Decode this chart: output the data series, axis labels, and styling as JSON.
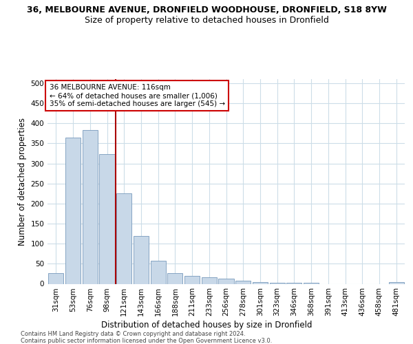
{
  "title_line1": "36, MELBOURNE AVENUE, DRONFIELD WOODHOUSE, DRONFIELD, S18 8YW",
  "title_line2": "Size of property relative to detached houses in Dronfield",
  "xlabel": "Distribution of detached houses by size in Dronfield",
  "ylabel": "Number of detached properties",
  "footer_line1": "Contains HM Land Registry data © Crown copyright and database right 2024.",
  "footer_line2": "Contains public sector information licensed under the Open Government Licence v3.0.",
  "categories": [
    "31sqm",
    "53sqm",
    "76sqm",
    "98sqm",
    "121sqm",
    "143sqm",
    "166sqm",
    "188sqm",
    "211sqm",
    "233sqm",
    "256sqm",
    "278sqm",
    "301sqm",
    "323sqm",
    "346sqm",
    "368sqm",
    "391sqm",
    "413sqm",
    "436sqm",
    "458sqm",
    "481sqm"
  ],
  "values": [
    26,
    365,
    383,
    323,
    225,
    120,
    58,
    27,
    20,
    16,
    13,
    7,
    5,
    2,
    2,
    2,
    0,
    0,
    0,
    0,
    5
  ],
  "bar_color": "#c8d8e8",
  "bar_edge_color": "#7799bb",
  "vline_x_index": 4,
  "vline_color": "#aa0000",
  "annotation_text": "36 MELBOURNE AVENUE: 116sqm\n← 64% of detached houses are smaller (1,006)\n35% of semi-detached houses are larger (545) →",
  "annotation_box_color": "#ffffff",
  "annotation_box_edge": "#cc0000",
  "ylim": [
    0,
    510
  ],
  "yticks": [
    0,
    50,
    100,
    150,
    200,
    250,
    300,
    350,
    400,
    450,
    500
  ],
  "bg_color": "#ffffff",
  "grid_color": "#ccdde8",
  "title1_fontsize": 9,
  "title2_fontsize": 9,
  "axis_label_fontsize": 8.5,
  "tick_fontsize": 7.5,
  "annotation_fontsize": 7.5,
  "footer_fontsize": 6
}
